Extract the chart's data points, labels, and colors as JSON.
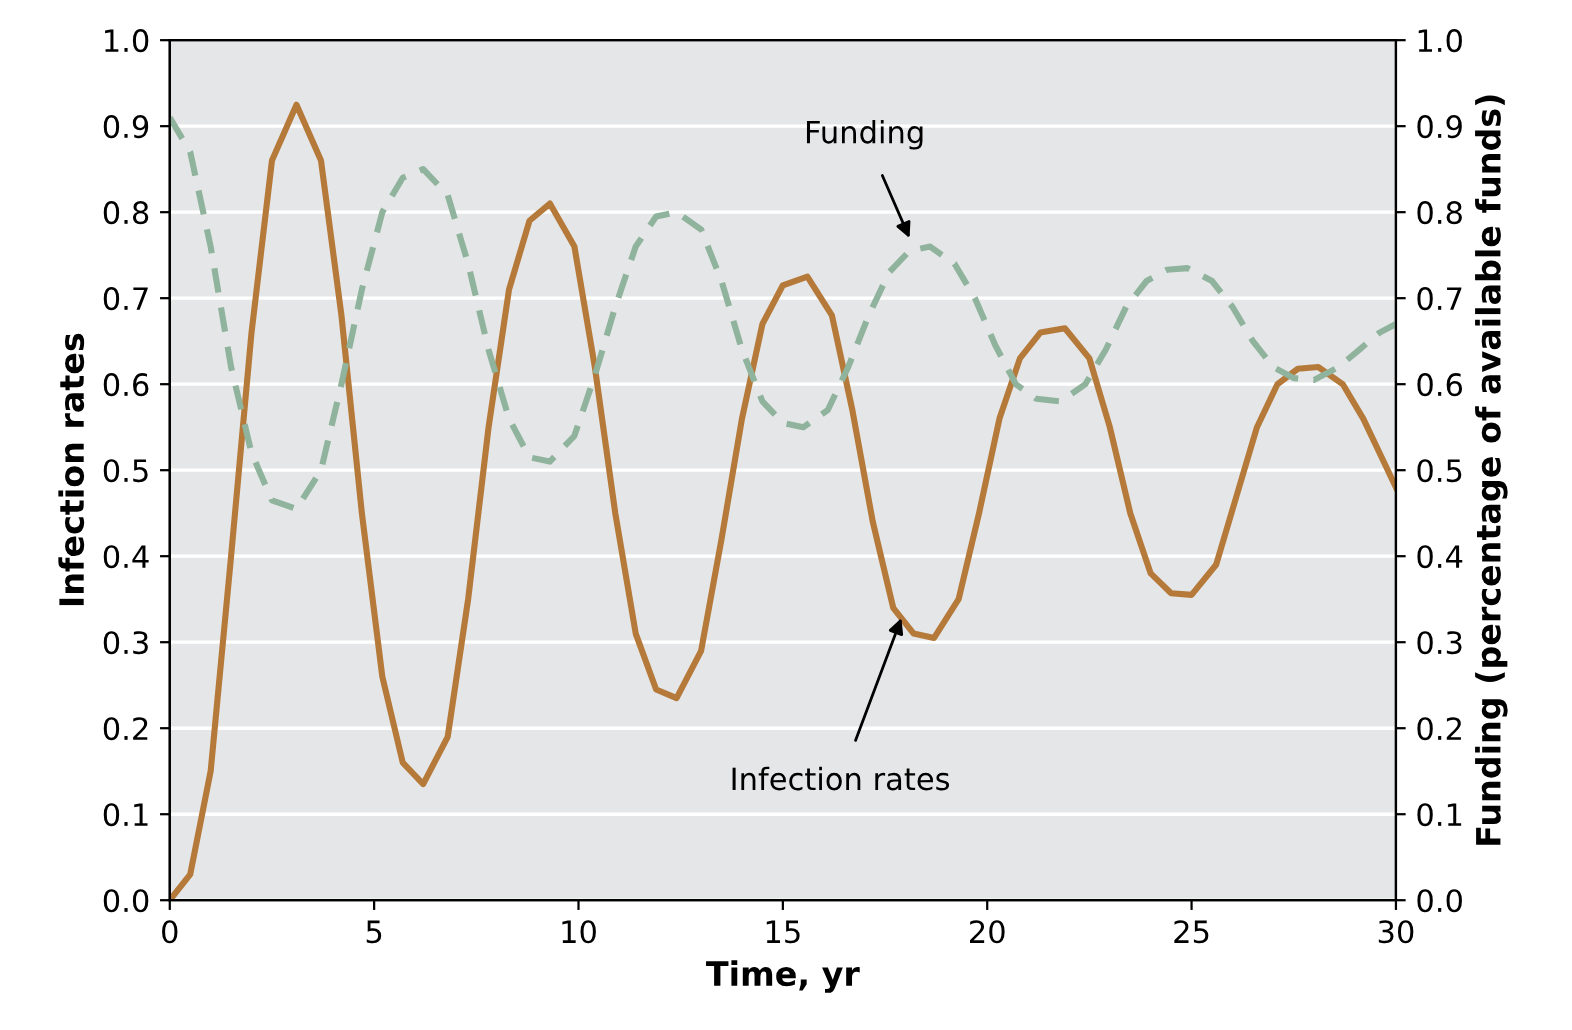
{
  "chart_data": {
    "type": "line",
    "xlabel": "Time, yr",
    "ylabel": "Infection rates",
    "y2label": "Funding (percentage of available funds)",
    "xlim": [
      0,
      30
    ],
    "xticks": [
      0,
      5,
      10,
      15,
      20,
      25,
      30
    ],
    "ylim": [
      0,
      1
    ],
    "yticks": [
      {
        "value": 0,
        "label": "0.0"
      },
      {
        "value": 0.1,
        "label": "0.1"
      },
      {
        "value": 0.2,
        "label": "0.2"
      },
      {
        "value": 0.3,
        "label": "0.3"
      },
      {
        "value": 0.4,
        "label": "0.4"
      },
      {
        "value": 0.5,
        "label": "0.5"
      },
      {
        "value": 0.6,
        "label": "0.6"
      },
      {
        "value": 0.7,
        "label": "0.7"
      },
      {
        "value": 0.8,
        "label": "0.8"
      },
      {
        "value": 0.9,
        "label": "0.9"
      },
      {
        "value": 1,
        "label": "1.0"
      }
    ],
    "y2lim": [
      0,
      1
    ],
    "y2ticks": [
      {
        "value": 0,
        "label": "0.0"
      },
      {
        "value": 0.1,
        "label": "0.1"
      },
      {
        "value": 0.2,
        "label": "0.2"
      },
      {
        "value": 0.3,
        "label": "0.3"
      },
      {
        "value": 0.4,
        "label": "0.4"
      },
      {
        "value": 0.5,
        "label": "0.5"
      },
      {
        "value": 0.6,
        "label": "0.6"
      },
      {
        "value": 0.7,
        "label": "0.7"
      },
      {
        "value": 0.8,
        "label": "0.8"
      },
      {
        "value": 0.9,
        "label": "0.9"
      },
      {
        "value": 1,
        "label": "1.0"
      }
    ],
    "grid": "y",
    "marker": "none",
    "series": [
      {
        "color": "#b5793a",
        "line_style": "solid",
        "x": [
          0,
          0.5,
          1,
          1.5,
          2,
          2.5,
          3.1,
          3.7,
          4.2,
          4.7,
          5.2,
          5.7,
          6.2,
          6.8,
          7.3,
          7.8,
          8.3,
          8.8,
          9.3,
          9.9,
          10.4,
          10.9,
          11.4,
          11.9,
          12.4,
          13.0,
          13.5,
          14.0,
          14.5,
          15.0,
          15.6,
          16.2,
          16.7,
          17.2,
          17.7,
          18.2,
          18.7,
          19.3,
          19.8,
          20.3,
          20.8,
          21.3,
          21.9,
          22.5,
          23.0,
          23.5,
          24.0,
          24.5,
          25.0,
          25.6,
          26.1,
          26.6,
          27.1,
          27.6,
          28.1,
          28.7,
          29.2,
          29.6,
          30
        ],
        "values": [
          0,
          0.03,
          0.15,
          0.4,
          0.66,
          0.86,
          0.925,
          0.86,
          0.68,
          0.45,
          0.26,
          0.16,
          0.135,
          0.19,
          0.35,
          0.55,
          0.71,
          0.79,
          0.81,
          0.76,
          0.62,
          0.45,
          0.31,
          0.245,
          0.235,
          0.29,
          0.42,
          0.56,
          0.67,
          0.715,
          0.725,
          0.68,
          0.57,
          0.44,
          0.34,
          0.31,
          0.305,
          0.35,
          0.45,
          0.56,
          0.63,
          0.66,
          0.665,
          0.63,
          0.55,
          0.45,
          0.38,
          0.357,
          0.355,
          0.39,
          0.47,
          0.55,
          0.6,
          0.618,
          0.62,
          0.6,
          0.56,
          0.52,
          0.48
        ]
      },
      {
        "color": "#8fb39c",
        "line_style": "dashed",
        "axis": "y2",
        "x": [
          0,
          0.5,
          1,
          1.5,
          2,
          2.5,
          3.1,
          3.7,
          4.2,
          4.7,
          5.2,
          5.7,
          6.2,
          6.8,
          7.3,
          7.8,
          8.3,
          8.8,
          9.3,
          9.9,
          10.4,
          10.9,
          11.4,
          11.9,
          12.4,
          13.0,
          13.5,
          14.0,
          14.5,
          15.0,
          15.5,
          16.1,
          16.6,
          17.1,
          17.6,
          18.1,
          18.6,
          19.2,
          19.7,
          20.2,
          20.7,
          21.2,
          21.8,
          22.4,
          22.9,
          23.4,
          23.9,
          24.4,
          24.9,
          25.5,
          26.0,
          26.5,
          27.0,
          27.5,
          28.0,
          28.6,
          29.1,
          29.6,
          30
        ],
        "values": [
          0.91,
          0.87,
          0.76,
          0.62,
          0.52,
          0.465,
          0.455,
          0.5,
          0.6,
          0.71,
          0.8,
          0.84,
          0.85,
          0.82,
          0.74,
          0.64,
          0.56,
          0.515,
          0.51,
          0.54,
          0.61,
          0.69,
          0.76,
          0.795,
          0.8,
          0.78,
          0.72,
          0.64,
          0.58,
          0.555,
          0.55,
          0.57,
          0.62,
          0.68,
          0.73,
          0.755,
          0.76,
          0.74,
          0.7,
          0.645,
          0.6,
          0.583,
          0.58,
          0.6,
          0.64,
          0.69,
          0.72,
          0.733,
          0.735,
          0.72,
          0.69,
          0.65,
          0.62,
          0.607,
          0.605,
          0.62,
          0.64,
          0.66,
          0.67
        ]
      }
    ],
    "annotations": [
      {
        "text": "Funding",
        "x": 18.1,
        "y": 0.77
      },
      {
        "text": "Infection rates",
        "x": 17.9,
        "y": 0.328
      }
    ]
  }
}
